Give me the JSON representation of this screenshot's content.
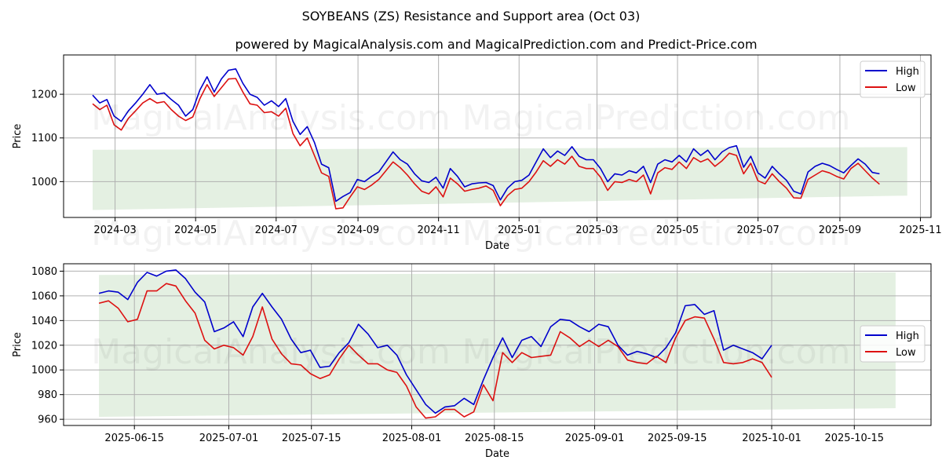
{
  "title": "SOYBEANS (ZS) Resistance and Support area (Oct 03)",
  "subtitle": "powered by MagicalAnalysis.com and MagicalPrediction.com and Predict-Price.com",
  "watermarks": [
    "MagicalAnalysis.com",
    "MagicalPrediction.com"
  ],
  "colors": {
    "high": "#0000cc",
    "low": "#dd1111",
    "band": "#e4f0e2",
    "grid": "#b0b0b0"
  },
  "chart_data": [
    {
      "type": "line",
      "xlabel": "Date",
      "ylabel": "Price",
      "x_start": "2024-02-13",
      "x_end": "2025-10-01",
      "xlim": [
        "2024-01-22",
        "2025-11-09"
      ],
      "ylim": [
        918,
        1290
      ],
      "xticks": [
        "2024-03",
        "2024-05",
        "2024-07",
        "2024-09",
        "2024-11",
        "2025-01",
        "2025-03",
        "2025-05",
        "2025-07",
        "2025-09",
        "2025-11"
      ],
      "xtick_dates": [
        "2024-03-01",
        "2024-05-01",
        "2024-07-01",
        "2024-09-01",
        "2024-11-01",
        "2025-01-01",
        "2025-03-01",
        "2025-05-01",
        "2025-07-01",
        "2025-09-01",
        "2025-11-01"
      ],
      "yticks": [
        1000,
        1100,
        1200
      ],
      "legend": [
        "High",
        "Low"
      ],
      "legend_loc": "upper right",
      "grid": true,
      "band": {
        "start": "2024-02-13",
        "end": "2025-10-22",
        "upper": [
          1073,
          1079
        ],
        "lower": [
          935,
          968
        ]
      },
      "series": [
        {
          "name": "High",
          "values": [
            1198,
            1180,
            1188,
            1150,
            1138,
            1162,
            1180,
            1200,
            1222,
            1200,
            1203,
            1188,
            1175,
            1150,
            1165,
            1210,
            1240,
            1205,
            1235,
            1255,
            1258,
            1225,
            1200,
            1193,
            1175,
            1185,
            1172,
            1190,
            1138,
            1108,
            1126,
            1090,
            1040,
            1032,
            955,
            966,
            975,
            1005,
            1000,
            1012,
            1022,
            1045,
            1068,
            1050,
            1040,
            1018,
            1002,
            998,
            1010,
            985,
            1030,
            1012,
            988,
            995,
            997,
            998,
            991,
            958,
            985,
            1000,
            1003,
            1015,
            1045,
            1075,
            1055,
            1070,
            1060,
            1080,
            1058,
            1050,
            1050,
            1030,
            1000,
            1018,
            1015,
            1025,
            1020,
            1035,
            998,
            1040,
            1050,
            1045,
            1060,
            1045,
            1075,
            1060,
            1072,
            1050,
            1068,
            1078,
            1082,
            1033,
            1058,
            1020,
            1008,
            1035,
            1018,
            1003,
            978,
            972,
            1022,
            1035,
            1042,
            1037,
            1028,
            1020,
            1037,
            1052,
            1040,
            1021,
            1018
          ]
        },
        {
          "name": "Low",
          "values": [
            1178,
            1165,
            1175,
            1130,
            1118,
            1145,
            1162,
            1180,
            1190,
            1180,
            1183,
            1165,
            1150,
            1140,
            1148,
            1190,
            1222,
            1195,
            1215,
            1235,
            1236,
            1205,
            1178,
            1175,
            1158,
            1160,
            1150,
            1168,
            1110,
            1082,
            1100,
            1060,
            1020,
            1012,
            938,
            940,
            965,
            988,
            982,
            992,
            1005,
            1025,
            1045,
            1032,
            1015,
            995,
            978,
            972,
            988,
            965,
            1008,
            995,
            978,
            982,
            985,
            990,
            980,
            945,
            968,
            982,
            985,
            1000,
            1022,
            1048,
            1035,
            1050,
            1040,
            1058,
            1035,
            1030,
            1030,
            1010,
            980,
            1000,
            998,
            1005,
            1000,
            1015,
            972,
            1020,
            1032,
            1028,
            1045,
            1030,
            1055,
            1045,
            1052,
            1035,
            1048,
            1065,
            1060,
            1018,
            1042,
            1002,
            995,
            1018,
            1000,
            985,
            963,
            962,
            1005,
            1015,
            1025,
            1020,
            1012,
            1006,
            1030,
            1042,
            1025,
            1008,
            994
          ]
        }
      ]
    },
    {
      "type": "line",
      "xlabel": "Date",
      "ylabel": "Price",
      "x_start": "2025-06-09",
      "x_end": "2025-10-01",
      "xlim": [
        "2025-06-03",
        "2025-10-28"
      ],
      "ylim": [
        955,
        1086
      ],
      "xticks": [
        "2025-06-15",
        "2025-07-01",
        "2025-07-15",
        "2025-08-01",
        "2025-08-15",
        "2025-09-01",
        "2025-09-15",
        "2025-10-01",
        "2025-10-15"
      ],
      "yticks": [
        960,
        980,
        1000,
        1020,
        1040,
        1060,
        1080
      ],
      "legend": [
        "High",
        "Low"
      ],
      "legend_loc": "center right",
      "grid": true,
      "band": {
        "start": "2025-06-09",
        "end": "2025-10-22",
        "upper": [
          1077,
          1079
        ],
        "lower": [
          962,
          969
        ]
      },
      "series": [
        {
          "name": "High",
          "values": [
            1062,
            1064,
            1063,
            1057,
            1071,
            1079,
            1076,
            1080,
            1081,
            1074,
            1063,
            1055,
            1031,
            1034,
            1039,
            1027,
            1051,
            1062,
            1051,
            1041,
            1025,
            1014,
            1016,
            1002,
            1003,
            1014,
            1022,
            1037,
            1029,
            1018,
            1020,
            1012,
            996,
            984,
            972,
            965,
            970,
            971,
            977,
            972,
            992,
            1010,
            1026,
            1010,
            1024,
            1027,
            1019,
            1035,
            1041,
            1040,
            1035,
            1031,
            1037,
            1035,
            1020,
            1012,
            1015,
            1013,
            1010,
            1018,
            1030,
            1052,
            1053,
            1045,
            1048,
            1016,
            1020,
            1017,
            1014,
            1009,
            1020
          ]
        },
        {
          "name": "Low",
          "values": [
            1054,
            1056,
            1050,
            1039,
            1041,
            1064,
            1064,
            1070,
            1068,
            1056,
            1046,
            1024,
            1017,
            1020,
            1018,
            1012,
            1027,
            1051,
            1025,
            1013,
            1005,
            1004,
            997,
            993,
            996,
            1009,
            1020,
            1012,
            1005,
            1005,
            1000,
            998,
            987,
            970,
            961,
            962,
            968,
            968,
            962,
            966,
            988,
            975,
            1014,
            1006,
            1014,
            1010,
            1011,
            1012,
            1031,
            1026,
            1019,
            1024,
            1019,
            1024,
            1019,
            1008,
            1006,
            1005,
            1011,
            1006,
            1026,
            1040,
            1043,
            1042,
            1025,
            1006,
            1005,
            1006,
            1009,
            1006,
            994
          ]
        }
      ]
    }
  ]
}
